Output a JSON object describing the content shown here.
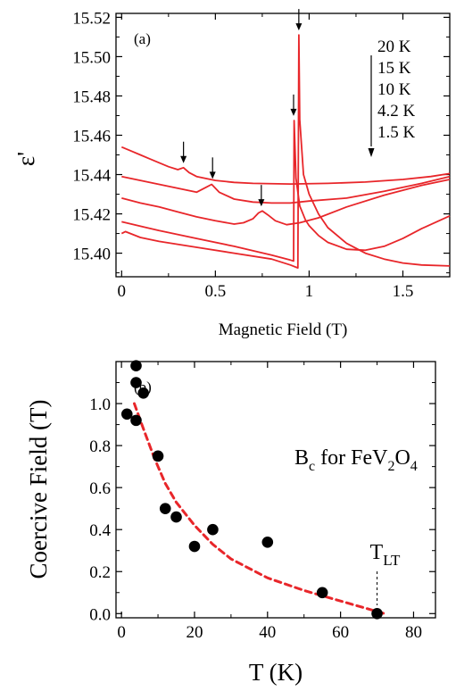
{
  "figure": {
    "chart_data": [
      {
        "type": "line",
        "panel_label": "(a)",
        "xlabel": "Magnetic Field (T)",
        "ylabel": "ε'",
        "xlim": [
          -0.03,
          1.75
        ],
        "ylim": [
          15.388,
          15.522
        ],
        "xticks": [
          0,
          0.5,
          1.0,
          1.5
        ],
        "xtick_labels": [
          "0",
          "0.5",
          "1",
          "1.5"
        ],
        "yticks": [
          15.4,
          15.42,
          15.44,
          15.46,
          15.48,
          15.5,
          15.52
        ],
        "ytick_labels": [
          "15.40",
          "15.42",
          "15.44",
          "15.46",
          "15.48",
          "15.50",
          "15.52"
        ],
        "legend": [
          "20 K",
          "15 K",
          "10 K",
          "4.2 K",
          "1.5 K"
        ],
        "line_color": "#e8262a",
        "series": [
          {
            "name": "20 K",
            "x": [
              0,
              0.05,
              0.1,
              0.15,
              0.2,
              0.25,
              0.3,
              0.33,
              0.36,
              0.4,
              0.5,
              0.6,
              0.7,
              0.9,
              1.1,
              1.3,
              1.5,
              1.65,
              1.75
            ],
            "y": [
              15.454,
              15.452,
              15.45,
              15.448,
              15.446,
              15.444,
              15.4425,
              15.4435,
              15.441,
              15.439,
              15.437,
              15.436,
              15.4355,
              15.4352,
              15.4355,
              15.4362,
              15.4375,
              15.439,
              15.4405
            ]
          },
          {
            "name": "15 K",
            "x": [
              0,
              0.1,
              0.2,
              0.3,
              0.4,
              0.45,
              0.48,
              0.52,
              0.6,
              0.7,
              0.8,
              0.9,
              1.0,
              1.2,
              1.4,
              1.6,
              1.75
            ],
            "y": [
              15.439,
              15.437,
              15.435,
              15.433,
              15.431,
              15.4335,
              15.435,
              15.431,
              15.4275,
              15.426,
              15.4255,
              15.4255,
              15.4265,
              15.428,
              15.4315,
              15.4355,
              15.439
            ]
          },
          {
            "name": "10 K",
            "x": [
              0,
              0.1,
              0.2,
              0.3,
              0.4,
              0.5,
              0.6,
              0.65,
              0.7,
              0.73,
              0.75,
              0.78,
              0.82,
              0.88,
              0.95,
              1.05,
              1.2,
              1.4,
              1.6,
              1.75
            ],
            "y": [
              15.428,
              15.4255,
              15.4235,
              15.421,
              15.4185,
              15.4165,
              15.4148,
              15.4155,
              15.4175,
              15.4205,
              15.4215,
              15.4195,
              15.4165,
              15.4145,
              15.4155,
              15.418,
              15.4235,
              15.4295,
              15.4345,
              15.4375
            ]
          },
          {
            "name": "4.2 K",
            "x": [
              0,
              0.2,
              0.4,
              0.6,
              0.8,
              0.9,
              0.917,
              0.92,
              0.93,
              0.95,
              0.98,
              1.0,
              1.05,
              1.1,
              1.2,
              1.3,
              1.4,
              1.5,
              1.6,
              1.75
            ],
            "y": [
              15.416,
              15.4115,
              15.4075,
              15.4035,
              15.399,
              15.3965,
              15.396,
              15.4675,
              15.438,
              15.424,
              15.417,
              15.414,
              15.409,
              15.4055,
              15.402,
              15.4015,
              15.4035,
              15.4075,
              15.4125,
              15.419
            ]
          },
          {
            "name": "1.5 K",
            "x": [
              0,
              0.02,
              0.1,
              0.2,
              0.4,
              0.6,
              0.8,
              0.9,
              0.94,
              0.945,
              0.95,
              0.97,
              1.0,
              1.05,
              1.1,
              1.2,
              1.3,
              1.4,
              1.5,
              1.6,
              1.75
            ],
            "y": [
              15.41,
              15.411,
              15.408,
              15.406,
              15.403,
              15.4,
              15.397,
              15.394,
              15.3925,
              15.511,
              15.468,
              15.44,
              15.43,
              15.42,
              15.413,
              15.405,
              15.4,
              15.397,
              15.395,
              15.394,
              15.3935
            ]
          }
        ],
        "annotations": [
          {
            "type": "arrow",
            "x": 0.33,
            "y": 15.444
          },
          {
            "type": "arrow",
            "x": 0.485,
            "y": 15.436
          },
          {
            "type": "arrow",
            "x": 0.745,
            "y": 15.422
          },
          {
            "type": "arrow",
            "x": 0.917,
            "y": 15.468
          },
          {
            "type": "arrow",
            "x": 0.945,
            "y": 15.5115
          }
        ]
      },
      {
        "type": "scatter",
        "panel_label": "(b)",
        "xlabel": "T (K)",
        "ylabel": "Coercive Field (T)",
        "xlim": [
          -1.5,
          86
        ],
        "ylim": [
          -0.02,
          1.2
        ],
        "xticks": [
          0,
          20,
          40,
          60,
          80
        ],
        "xtick_labels": [
          "0",
          "20",
          "40",
          "60",
          "80"
        ],
        "yticks": [
          0.0,
          0.2,
          0.4,
          0.6,
          0.8,
          1.0
        ],
        "ytick_labels": [
          "0.0",
          "0.2",
          "0.4",
          "0.6",
          "0.8",
          "1.0"
        ],
        "annotation_text": "B",
        "annotation_sub": "c",
        "annotation_text2": " for FeV",
        "annotation_sub2": "2",
        "annotation_text3": "O",
        "annotation_sub3": "4",
        "tlt_label": "T",
        "tlt_sub": "LT",
        "tlt_x": 70,
        "marker_color": "#000000",
        "fit_color": "#e8262a",
        "points": {
          "x": [
            1.5,
            4,
            4,
            4,
            6,
            10,
            12,
            15,
            20,
            25,
            40,
            55,
            70
          ],
          "y": [
            0.95,
            1.18,
            1.1,
            0.92,
            1.05,
            0.75,
            0.5,
            0.46,
            0.32,
            0.4,
            0.34,
            0.1,
            0.0
          ]
        },
        "fit": {
          "x": [
            3.5,
            6,
            9,
            12,
            15,
            20,
            25,
            30,
            40,
            50,
            60,
            72
          ],
          "y": [
            1.0,
            0.88,
            0.74,
            0.62,
            0.53,
            0.42,
            0.33,
            0.26,
            0.17,
            0.11,
            0.06,
            0.0
          ]
        }
      }
    ]
  }
}
